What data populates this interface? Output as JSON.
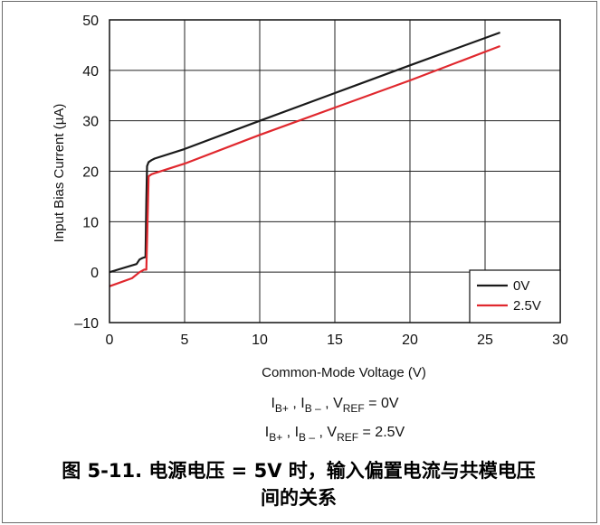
{
  "chart_data": {
    "type": "line",
    "title": "",
    "xlabel": "Common-Mode Voltage (V)",
    "ylabel": "Input Bias Current (µA)",
    "xlim": [
      0,
      30
    ],
    "ylim": [
      -10,
      50
    ],
    "xticks": [
      0,
      5,
      10,
      15,
      20,
      25,
      30
    ],
    "yticks": [
      -10,
      0,
      10,
      20,
      30,
      40,
      50
    ],
    "ytick_labels": [
      "–10",
      "0",
      "10",
      "20",
      "30",
      "40",
      "50"
    ],
    "grid": true,
    "legend_position": "bottom-right",
    "series": [
      {
        "name": "0V",
        "color": "#1a1a1a",
        "x": [
          0,
          1.8,
          2.0,
          2.2,
          2.4,
          2.45,
          2.5,
          2.6,
          2.8,
          3.0,
          5,
          10,
          15,
          20,
          26
        ],
        "y": [
          0,
          1.6,
          2.5,
          2.8,
          3.0,
          14,
          21,
          21.8,
          22.2,
          22.5,
          24.4,
          30.0,
          35.5,
          41.0,
          47.5
        ]
      },
      {
        "name": "2.5V",
        "color": "#e0282e",
        "x": [
          0,
          1.5,
          2.0,
          2.3,
          2.45,
          2.55,
          2.6,
          2.8,
          3.0,
          5,
          10,
          15,
          20,
          26
        ],
        "y": [
          -2.8,
          -1.2,
          0,
          0.5,
          0.5,
          12,
          19,
          19.4,
          19.6,
          21.5,
          27.2,
          32.6,
          38.0,
          44.8
        ]
      }
    ]
  },
  "conditions": {
    "line1": {
      "i_bplus": "I",
      "i_bplus_sub": "B+",
      "sep1": " , ",
      "i_bminus": "I",
      "i_bminus_sub": "B –",
      "sep2": " , ",
      "vref": "V",
      "vref_sub": "REF",
      "value": " = 0V"
    },
    "line2": {
      "i_bplus": "I",
      "i_bplus_sub": "B+",
      "sep1": " , ",
      "i_bminus": "I",
      "i_bminus_sub": "B –",
      "sep2": " , ",
      "vref": "V",
      "vref_sub": "REF",
      "value": " = 2.5V"
    }
  },
  "caption": {
    "line1": "图 5-11. 电源电压 = 5V 时，输入偏置电流与共模电压",
    "line2": "间的关系"
  }
}
